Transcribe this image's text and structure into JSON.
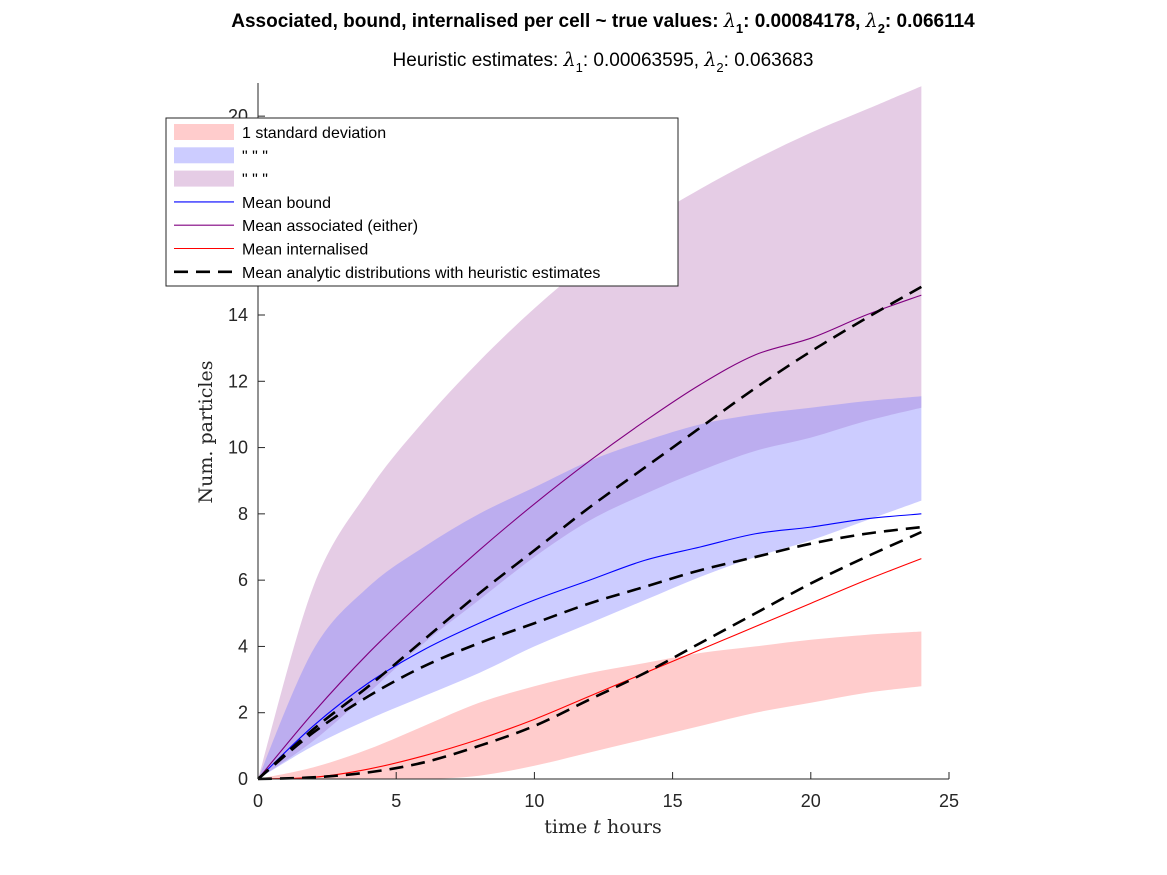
{
  "chart_data": {
    "type": "area",
    "title": {
      "prefix": "Associated, bound, internalised per cell ~ true values:  ",
      "lambda1_label": "λ",
      "lambda1_sub": "1",
      "lambda1_value": ": 0.00084178, ",
      "lambda2_label": "λ",
      "lambda2_sub": "2",
      "lambda2_value": ": 0.066114"
    },
    "subtitle": {
      "prefix": "Heuristic estimates: ",
      "lambda1_label": "λ",
      "lambda1_sub": "1",
      "lambda1_value": ": 0.00063595, ",
      "lambda2_label": "λ",
      "lambda2_sub": "2",
      "lambda2_value": ": 0.063683"
    },
    "xlabel": {
      "prefix": "time ",
      "var": "t",
      "suffix": " hours"
    },
    "ylabel": "Num. particles",
    "xlim": [
      0,
      25
    ],
    "ylim": [
      0,
      21
    ],
    "xticks": [
      0,
      5,
      10,
      15,
      20,
      25
    ],
    "yticks": [
      0,
      2,
      4,
      6,
      8,
      10,
      12,
      14,
      16,
      18,
      20
    ],
    "yticks_visible_labels": [
      "0",
      "2",
      "4",
      "6",
      "8",
      "10",
      "12",
      "14",
      "",
      "",
      "20"
    ],
    "grid": false,
    "legend_position": "top-left",
    "legend": [
      {
        "label": "1 standard deviation",
        "kind": "patch",
        "color": "#ffcccc"
      },
      {
        "label": "\" \" \"",
        "kind": "patch",
        "color": "#ccccff"
      },
      {
        "label": "\" \" \"",
        "kind": "patch",
        "color": "#e5cce5"
      },
      {
        "label": "Mean bound",
        "kind": "line",
        "color": "#0000ff"
      },
      {
        "label": "Mean associated (either)",
        "kind": "line",
        "color": "#800080"
      },
      {
        "label": "Mean internalised",
        "kind": "line",
        "color": "#ff0000"
      },
      {
        "label": "Mean analytic distributions with heuristic estimates",
        "kind": "dashed",
        "color": "#000000"
      }
    ],
    "x": [
      0,
      2,
      4,
      6,
      8,
      10,
      12,
      14,
      16,
      18,
      20,
      22,
      24
    ],
    "bands": [
      {
        "name": "associated",
        "color": "#bf7fbf",
        "opacity": 0.4,
        "upper": [
          0,
          5.8,
          8.7,
          10.8,
          12.6,
          14.2,
          15.6,
          16.8,
          17.8,
          18.7,
          19.5,
          20.2,
          20.9
        ],
        "lower": [
          0,
          1.15,
          2.6,
          4.1,
          5.4,
          6.7,
          7.8,
          8.6,
          9.3,
          9.9,
          10.3,
          10.8,
          11.2
        ]
      },
      {
        "name": "bound",
        "color": "#7f7fff",
        "opacity": 0.4,
        "upper": [
          0,
          3.9,
          5.8,
          7.0,
          8.0,
          8.8,
          9.6,
          10.2,
          10.7,
          11.0,
          11.2,
          11.4,
          11.55
        ],
        "lower": [
          0,
          1.0,
          1.8,
          2.5,
          3.2,
          4.0,
          4.7,
          5.4,
          6.1,
          6.7,
          7.2,
          7.8,
          8.4
        ]
      },
      {
        "name": "internalised",
        "color": "#ff7f7f",
        "opacity": 0.4,
        "upper": [
          0,
          0.35,
          0.9,
          1.6,
          2.3,
          2.8,
          3.2,
          3.5,
          3.8,
          4.0,
          4.2,
          4.35,
          4.45
        ],
        "lower": [
          0,
          0,
          0,
          0,
          0.1,
          0.4,
          0.8,
          1.2,
          1.6,
          2.0,
          2.3,
          2.6,
          2.8
        ]
      }
    ],
    "series": [
      {
        "name": "Mean associated (either)",
        "color": "#800080",
        "dash": false,
        "values": [
          0,
          2.0,
          3.8,
          5.4,
          6.9,
          8.3,
          9.6,
          10.8,
          11.9,
          12.8,
          13.3,
          14.0,
          14.6
        ]
      },
      {
        "name": "Mean bound",
        "color": "#0000ff",
        "dash": false,
        "values": [
          0,
          1.6,
          2.9,
          3.9,
          4.7,
          5.4,
          6.0,
          6.6,
          7.0,
          7.4,
          7.6,
          7.85,
          8.0
        ]
      },
      {
        "name": "Mean internalised",
        "color": "#ff0000",
        "dash": false,
        "values": [
          0,
          0.05,
          0.3,
          0.7,
          1.2,
          1.8,
          2.5,
          3.2,
          3.9,
          4.6,
          5.3,
          6.0,
          6.65
        ]
      },
      {
        "name": "analytic associated",
        "color": "#000000",
        "dash": true,
        "values": [
          0,
          1.5,
          2.8,
          4.2,
          5.6,
          6.9,
          8.2,
          9.4,
          10.6,
          11.8,
          12.9,
          13.9,
          14.85
        ]
      },
      {
        "name": "analytic bound",
        "color": "#000000",
        "dash": true,
        "values": [
          0,
          1.4,
          2.5,
          3.4,
          4.1,
          4.7,
          5.3,
          5.8,
          6.3,
          6.7,
          7.1,
          7.4,
          7.6
        ]
      },
      {
        "name": "analytic internalised",
        "color": "#000000",
        "dash": true,
        "values": [
          0,
          0.05,
          0.2,
          0.5,
          1.0,
          1.6,
          2.4,
          3.2,
          4.1,
          5.0,
          5.9,
          6.7,
          7.45
        ]
      }
    ]
  }
}
